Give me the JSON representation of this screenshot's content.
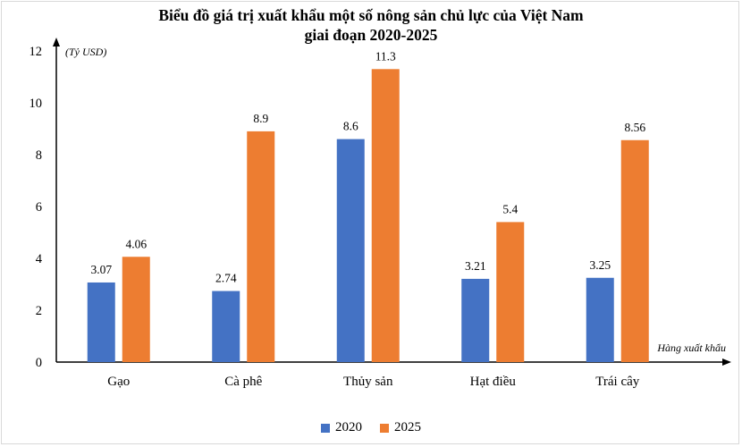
{
  "chart_data": {
    "type": "bar",
    "title_line1": "Biểu đồ giá trị xuất khẩu một số nông sản chủ lực của Việt Nam",
    "title_line2": "giai đoạn 2020-2025",
    "ylabel": "(Tỷ USD)",
    "xlabel": "Hàng xuất khẩu",
    "ylim": [
      0,
      12
    ],
    "yticks": [
      "0",
      "2",
      "4",
      "6",
      "8",
      "10",
      "12"
    ],
    "categories": [
      "Gạo",
      "Cà phê",
      "Thủy sản",
      "Hạt điều",
      "Trái cây"
    ],
    "series": [
      {
        "name": "2020",
        "color": "#4472c4",
        "values": [
          3.07,
          2.74,
          8.6,
          3.21,
          3.25
        ],
        "labels": [
          "3.07",
          "2.74",
          "8.6",
          "3.21",
          "3.25"
        ]
      },
      {
        "name": "2025",
        "color": "#ed7d31",
        "values": [
          4.06,
          8.9,
          11.3,
          5.4,
          8.56
        ],
        "labels": [
          "4.06",
          "8.9",
          "11.3",
          "5.4",
          "8.56"
        ]
      }
    ],
    "grid": false,
    "legend_position": "bottom"
  }
}
